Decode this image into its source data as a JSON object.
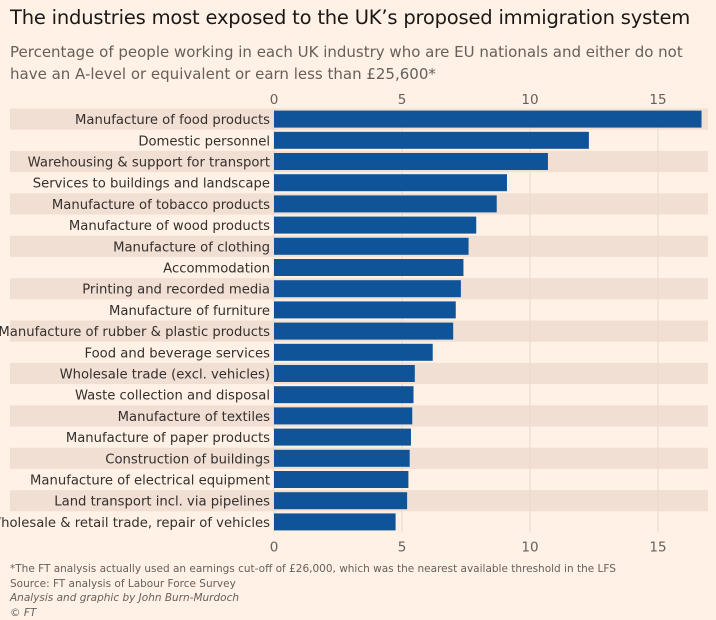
{
  "title": "The industries most exposed to the UK’s proposed immigration system",
  "subtitle": "Percentage of people working in each UK industry who are EU nationals and either do not have an A-level or equivalent or earn less than £25,600*",
  "footnote": "*The FT analysis actually used an earnings cut-off of £26,000, which was the nearest available threshold in the LFS",
  "source": "Source: FT analysis of Labour Force Survey",
  "credit": "Analysis and graphic by John Burn-Murdoch",
  "copyright": "© FT",
  "colors": {
    "bar": "#0f5499",
    "band": "#f2dfd4",
    "background": "#fff1e5"
  },
  "chart_data": {
    "type": "bar",
    "orientation": "horizontal",
    "categories": [
      "Manufacture of food products",
      "Domestic personnel",
      "Warehousing & support for transport",
      "Services to buildings and landscape",
      "Manufacture of tobacco products",
      "Manufacture of wood products",
      "Manufacture of clothing",
      "Accommodation",
      "Printing and recorded media",
      "Manufacture of furniture",
      "Manufacture of rubber & plastic products",
      "Food and beverage services",
      "Wholesale trade (excl. vehicles)",
      "Waste collection and disposal",
      "Manufacture of textiles",
      "Manufacture of paper products",
      "Construction of buildings",
      "Manufacture of electrical equipment",
      "Land transport incl. via pipelines",
      "Wholesale & retail trade, repair of vehicles"
    ],
    "values": [
      16.7,
      12.3,
      10.7,
      9.1,
      8.7,
      7.9,
      7.6,
      7.4,
      7.3,
      7.1,
      7.0,
      6.2,
      5.5,
      5.45,
      5.4,
      5.35,
      5.3,
      5.25,
      5.2,
      4.75
    ],
    "xlim": [
      0,
      17
    ],
    "ticks": [
      0,
      5,
      10,
      15
    ],
    "tick_labels": [
      "0",
      "5",
      "10",
      "15"
    ],
    "grid": true,
    "axis_position": "top and bottom"
  }
}
